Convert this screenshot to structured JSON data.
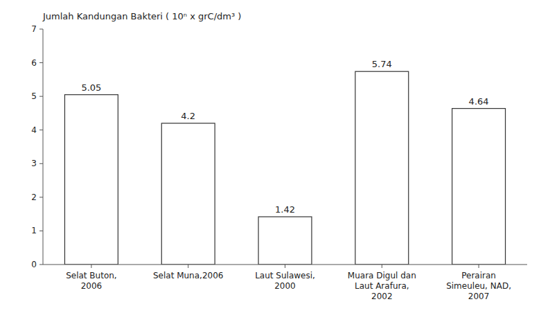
{
  "chart_data": {
    "type": "bar",
    "ylabel": "Jumlah Kandungan Bakteri ( 10ⁿ x grC/dm³ )",
    "categories": [
      "Selat Buton,\n2006",
      "Selat Muna,2006",
      "Laut Sulawesi,\n2000",
      "Muara Digul dan\nLaut Arafura,\n2002",
      "Perairan\nSimeuleu, NAD,\n2007"
    ],
    "values": [
      5.05,
      4.2,
      1.42,
      5.74,
      4.64
    ],
    "color": "#ffffff",
    "ylim": [
      0,
      7
    ],
    "yticks": [
      0,
      1,
      2,
      3,
      4,
      5,
      6,
      7
    ],
    "grid": false,
    "data_labels": true
  }
}
